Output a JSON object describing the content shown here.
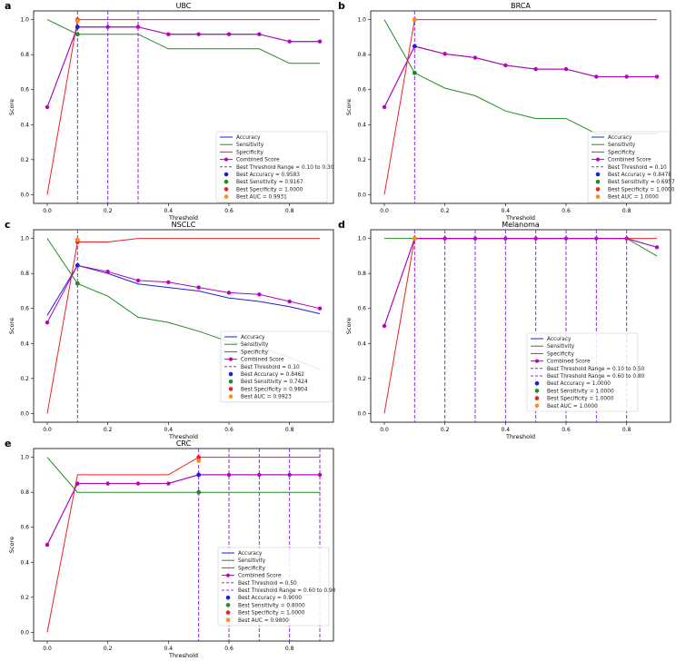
{
  "colors": {
    "accuracy": "#1f1fd8",
    "sensitivity": "#228b22",
    "specificity": "#ee2222",
    "combined": "#bb00bb",
    "threshold": "#8a2be2",
    "best_accuracy": "#1f1fd8",
    "best_sensitivity": "#228b22",
    "best_specificity": "#ee2222",
    "best_auc": "#ff8c1a"
  },
  "chart_data": [
    {
      "panel": "a",
      "type": "line",
      "title": "UBC",
      "xlabel": "Threshold",
      "ylabel": "Score",
      "xlim": [
        -0.045,
        0.945
      ],
      "ylim": [
        -0.05,
        1.05
      ],
      "xticks": [
        "0.0",
        "0.2",
        "0.4",
        "0.6",
        "0.8"
      ],
      "yticks": [
        "0.0",
        "0.2",
        "0.4",
        "0.6",
        "0.8",
        "1.0"
      ],
      "x": [
        0.0,
        0.1,
        0.2,
        0.3,
        0.4,
        0.5,
        0.6,
        0.7,
        0.8,
        0.9
      ],
      "series": [
        {
          "name": "Accuracy",
          "key": "accuracy",
          "values": [
            0.5,
            0.9583,
            0.9583,
            0.9583,
            0.9167,
            0.9167,
            0.9167,
            0.9167,
            0.875,
            0.875
          ]
        },
        {
          "name": "Sensitivity",
          "key": "sensitivity",
          "values": [
            1.0,
            0.9167,
            0.9167,
            0.9167,
            0.8333,
            0.8333,
            0.8333,
            0.8333,
            0.75,
            0.75
          ]
        },
        {
          "name": "Specificity",
          "key": "specificity",
          "values": [
            0.0,
            1.0,
            1.0,
            1.0,
            1.0,
            1.0,
            1.0,
            1.0,
            1.0,
            1.0
          ]
        },
        {
          "name": "Combined Score",
          "key": "combined",
          "marker": true,
          "values": [
            0.5,
            0.9583,
            0.9583,
            0.9583,
            0.9167,
            0.9167,
            0.9167,
            0.9167,
            0.875,
            0.875
          ]
        }
      ],
      "vlines": [
        0.1,
        0.2,
        0.3
      ],
      "best_x": 0.1,
      "best": {
        "accuracy": 0.9583,
        "sensitivity": 0.9167,
        "specificity": 1.0,
        "auc": 0.9931
      },
      "legend": [
        {
          "label": "Accuracy",
          "kind": "line",
          "color": "accuracy"
        },
        {
          "label": "Sensitivity",
          "kind": "line",
          "color": "sensitivity"
        },
        {
          "label": "Specificity",
          "kind": "line",
          "color": "specificity"
        },
        {
          "label": "Combined Score",
          "kind": "linemarker",
          "color": "combined"
        },
        {
          "label": "Best Threshold Range = 0.10 to 0.30",
          "kind": "dash",
          "color": "threshold"
        },
        {
          "label": "Best Accuracy = 0.9583",
          "kind": "dot",
          "color": "best_accuracy"
        },
        {
          "label": "Best Sensitivity = 0.9167",
          "kind": "dot",
          "color": "best_sensitivity"
        },
        {
          "label": "Best Specificity = 1.0000",
          "kind": "dot",
          "color": "best_specificity"
        },
        {
          "label": "Best AUC = 0.9931",
          "kind": "dot",
          "color": "best_auc"
        }
      ]
    },
    {
      "panel": "b",
      "type": "line",
      "title": "BRCA",
      "xlabel": "Threshold",
      "ylabel": "Score",
      "xlim": [
        -0.045,
        0.945
      ],
      "ylim": [
        -0.05,
        1.05
      ],
      "xticks": [
        "0.0",
        "0.2",
        "0.4",
        "0.6",
        "0.8"
      ],
      "yticks": [
        "0.0",
        "0.2",
        "0.4",
        "0.6",
        "0.8",
        "1.0"
      ],
      "x": [
        0.0,
        0.1,
        0.2,
        0.3,
        0.4,
        0.5,
        0.6,
        0.7,
        0.8,
        0.9
      ],
      "series": [
        {
          "name": "Accuracy",
          "key": "accuracy",
          "values": [
            0.5,
            0.8478,
            0.8043,
            0.7826,
            0.7391,
            0.7174,
            0.7174,
            0.6739,
            0.6739,
            0.6739
          ]
        },
        {
          "name": "Sensitivity",
          "key": "sensitivity",
          "values": [
            1.0,
            0.6957,
            0.6087,
            0.5652,
            0.4783,
            0.4348,
            0.4348,
            0.3478,
            0.3478,
            0.3478
          ]
        },
        {
          "name": "Specificity",
          "key": "specificity",
          "values": [
            0.0,
            1.0,
            1.0,
            1.0,
            1.0,
            1.0,
            1.0,
            1.0,
            1.0,
            1.0
          ]
        },
        {
          "name": "Combined Score",
          "key": "combined",
          "marker": true,
          "values": [
            0.5,
            0.8478,
            0.8043,
            0.7826,
            0.7391,
            0.7174,
            0.7174,
            0.6739,
            0.6739,
            0.6739
          ]
        }
      ],
      "vlines": [
        0.1
      ],
      "best_x": 0.1,
      "best": {
        "accuracy": 0.8478,
        "sensitivity": 0.6957,
        "specificity": 1.0,
        "auc": 1.0
      },
      "legend": [
        {
          "label": "Accuracy",
          "kind": "line",
          "color": "accuracy"
        },
        {
          "label": "Sensitivity",
          "kind": "line",
          "color": "sensitivity"
        },
        {
          "label": "Specificity",
          "kind": "line",
          "color": "specificity"
        },
        {
          "label": "Combined Score",
          "kind": "linemarker",
          "color": "combined"
        },
        {
          "label": "Best Threshold = 0.10",
          "kind": "dash",
          "color": "threshold"
        },
        {
          "label": "Best Accuracy = 0.8478",
          "kind": "dot",
          "color": "best_accuracy"
        },
        {
          "label": "Best Sensitivity = 0.6957",
          "kind": "dot",
          "color": "best_sensitivity"
        },
        {
          "label": "Best Specificity = 1.0000",
          "kind": "dot",
          "color": "best_specificity"
        },
        {
          "label": "Best AUC = 1.0000",
          "kind": "dot",
          "color": "best_auc"
        }
      ]
    },
    {
      "panel": "c",
      "type": "line",
      "title": "NSCLC",
      "xlabel": "Threshold",
      "ylabel": "Score",
      "xlim": [
        -0.045,
        0.945
      ],
      "ylim": [
        -0.05,
        1.05
      ],
      "xticks": [
        "0.0",
        "0.2",
        "0.4",
        "0.6",
        "0.8"
      ],
      "yticks": [
        "0.0",
        "0.2",
        "0.4",
        "0.6",
        "0.8",
        "1.0"
      ],
      "x": [
        0.0,
        0.1,
        0.2,
        0.3,
        0.4,
        0.5,
        0.6,
        0.7,
        0.8,
        0.9
      ],
      "series": [
        {
          "name": "Accuracy",
          "key": "accuracy",
          "values": [
            0.56,
            0.8462,
            0.8,
            0.74,
            0.72,
            0.7,
            0.66,
            0.64,
            0.61,
            0.57
          ]
        },
        {
          "name": "Sensitivity",
          "key": "sensitivity",
          "values": [
            1.0,
            0.7424,
            0.67,
            0.55,
            0.52,
            0.47,
            0.41,
            0.38,
            0.32,
            0.25
          ]
        },
        {
          "name": "Specificity",
          "key": "specificity",
          "values": [
            0.0,
            0.9804,
            0.98,
            1.0,
            1.0,
            1.0,
            1.0,
            1.0,
            1.0,
            1.0
          ]
        },
        {
          "name": "Combined Score",
          "key": "combined",
          "marker": true,
          "values": [
            0.52,
            0.8462,
            0.81,
            0.76,
            0.75,
            0.72,
            0.69,
            0.68,
            0.64,
            0.6
          ]
        }
      ],
      "vlines": [
        0.1
      ],
      "best_x": 0.1,
      "best": {
        "accuracy": 0.8462,
        "sensitivity": 0.7424,
        "specificity": 0.9804,
        "auc": 0.9923
      },
      "legend": [
        {
          "label": "Accuracy",
          "kind": "line",
          "color": "accuracy"
        },
        {
          "label": "Sensitivity",
          "kind": "line",
          "color": "sensitivity"
        },
        {
          "label": "Specificity",
          "kind": "line",
          "color": "specificity"
        },
        {
          "label": "Combined Score",
          "kind": "linemarker",
          "color": "combined"
        },
        {
          "label": "Best Threshold = 0.10",
          "kind": "dash",
          "color": "threshold"
        },
        {
          "label": "Best Accuracy = 0.8462",
          "kind": "dot",
          "color": "best_accuracy"
        },
        {
          "label": "Best Sensitivity = 0.7424",
          "kind": "dot",
          "color": "best_sensitivity"
        },
        {
          "label": "Best Specificity = 0.9804",
          "kind": "dot",
          "color": "best_specificity"
        },
        {
          "label": "Best AUC = 0.9923",
          "kind": "dot",
          "color": "best_auc"
        }
      ]
    },
    {
      "panel": "d",
      "type": "line",
      "title": "Melanoma",
      "xlabel": "Threshold",
      "ylabel": "Score",
      "xlim": [
        -0.045,
        0.945
      ],
      "ylim": [
        -0.05,
        1.05
      ],
      "xticks": [
        "0.0",
        "0.2",
        "0.4",
        "0.6",
        "0.8"
      ],
      "yticks": [
        "0.0",
        "0.2",
        "0.4",
        "0.6",
        "0.8",
        "1.0"
      ],
      "x": [
        0.0,
        0.1,
        0.2,
        0.3,
        0.4,
        0.5,
        0.6,
        0.7,
        0.8,
        0.9
      ],
      "series": [
        {
          "name": "Accuracy",
          "key": "accuracy",
          "values": [
            0.5,
            1.0,
            1.0,
            1.0,
            1.0,
            1.0,
            1.0,
            1.0,
            1.0,
            0.95
          ]
        },
        {
          "name": "Sensitivity",
          "key": "sensitivity",
          "values": [
            1.0,
            1.0,
            1.0,
            1.0,
            1.0,
            1.0,
            1.0,
            1.0,
            1.0,
            0.9
          ]
        },
        {
          "name": "Specificity",
          "key": "specificity",
          "values": [
            0.0,
            1.0,
            1.0,
            1.0,
            1.0,
            1.0,
            1.0,
            1.0,
            1.0,
            1.0
          ]
        },
        {
          "name": "Combined Score",
          "key": "combined",
          "marker": true,
          "values": [
            0.5,
            1.0,
            1.0,
            1.0,
            1.0,
            1.0,
            1.0,
            1.0,
            1.0,
            0.95
          ]
        }
      ],
      "vlines": [
        0.1,
        0.2,
        0.3,
        0.4,
        0.5,
        0.6,
        0.7,
        0.8
      ],
      "best_x": 0.1,
      "best": {
        "accuracy": 1.0,
        "sensitivity": 1.0,
        "specificity": 1.0,
        "auc": 1.0
      },
      "legend": [
        {
          "label": "Accuracy",
          "kind": "line",
          "color": "accuracy"
        },
        {
          "label": "Sensitivity",
          "kind": "line",
          "color": "sensitivity"
        },
        {
          "label": "Specificity",
          "kind": "line",
          "color": "specificity"
        },
        {
          "label": "Combined Score",
          "kind": "linemarker",
          "color": "combined"
        },
        {
          "label": "Best Threshold Range = 0.10 to 0.50",
          "kind": "dash",
          "color": "threshold"
        },
        {
          "label": "Best Threshold Range = 0.60 to 0.80",
          "kind": "dash",
          "color": "threshold"
        },
        {
          "label": "Best Accuracy = 1.0000",
          "kind": "dot",
          "color": "best_accuracy"
        },
        {
          "label": "Best Sensitivity = 1.0000",
          "kind": "dot",
          "color": "best_sensitivity"
        },
        {
          "label": "Best Specificity = 1.0000",
          "kind": "dot",
          "color": "best_specificity"
        },
        {
          "label": "Best AUC = 1.0000",
          "kind": "dot",
          "color": "best_auc"
        }
      ]
    },
    {
      "panel": "e",
      "type": "line",
      "title": "CRC",
      "xlabel": "Threshold",
      "ylabel": "Score",
      "xlim": [
        -0.045,
        0.945
      ],
      "ylim": [
        -0.05,
        1.05
      ],
      "xticks": [
        "0.0",
        "0.2",
        "0.4",
        "0.6",
        "0.8"
      ],
      "yticks": [
        "0.0",
        "0.2",
        "0.4",
        "0.6",
        "0.8",
        "1.0"
      ],
      "x": [
        0.0,
        0.1,
        0.2,
        0.3,
        0.4,
        0.5,
        0.6,
        0.7,
        0.8,
        0.9
      ],
      "series": [
        {
          "name": "Accuracy",
          "key": "accuracy",
          "values": [
            0.5,
            0.85,
            0.85,
            0.85,
            0.85,
            0.9,
            0.9,
            0.9,
            0.9,
            0.9
          ]
        },
        {
          "name": "Sensitivity",
          "key": "sensitivity",
          "values": [
            1.0,
            0.8,
            0.8,
            0.8,
            0.8,
            0.8,
            0.8,
            0.8,
            0.8,
            0.8
          ]
        },
        {
          "name": "Specificity",
          "key": "specificity",
          "values": [
            0.0,
            0.9,
            0.9,
            0.9,
            0.9,
            1.0,
            1.0,
            1.0,
            1.0,
            1.0
          ]
        },
        {
          "name": "Combined Score",
          "key": "combined",
          "marker": true,
          "values": [
            0.5,
            0.85,
            0.85,
            0.85,
            0.85,
            0.9,
            0.9,
            0.9,
            0.9,
            0.9
          ]
        }
      ],
      "vlines": [
        0.5,
        0.6,
        0.7,
        0.8,
        0.9
      ],
      "best_x": 0.5,
      "best": {
        "accuracy": 0.9,
        "sensitivity": 0.8,
        "specificity": 1.0,
        "auc": 0.98
      },
      "legend": [
        {
          "label": "Accuracy",
          "kind": "line",
          "color": "accuracy"
        },
        {
          "label": "Sensitivity",
          "kind": "line",
          "color": "sensitivity"
        },
        {
          "label": "Specificity",
          "kind": "line",
          "color": "specificity"
        },
        {
          "label": "Combined Score",
          "kind": "linemarker",
          "color": "combined"
        },
        {
          "label": "Best Threshold = 0.50",
          "kind": "dash",
          "color": "threshold"
        },
        {
          "label": "Best Threshold Range = 0.60 to 0.90",
          "kind": "dash",
          "color": "threshold"
        },
        {
          "label": "Best Accuracy = 0.9000",
          "kind": "dot",
          "color": "best_accuracy"
        },
        {
          "label": "Best Sensitivity = 0.8000",
          "kind": "dot",
          "color": "best_sensitivity"
        },
        {
          "label": "Best Specificity = 1.0000",
          "kind": "dot",
          "color": "best_specificity"
        },
        {
          "label": "Best AUC = 0.9800",
          "kind": "dot",
          "color": "best_auc"
        }
      ]
    }
  ]
}
